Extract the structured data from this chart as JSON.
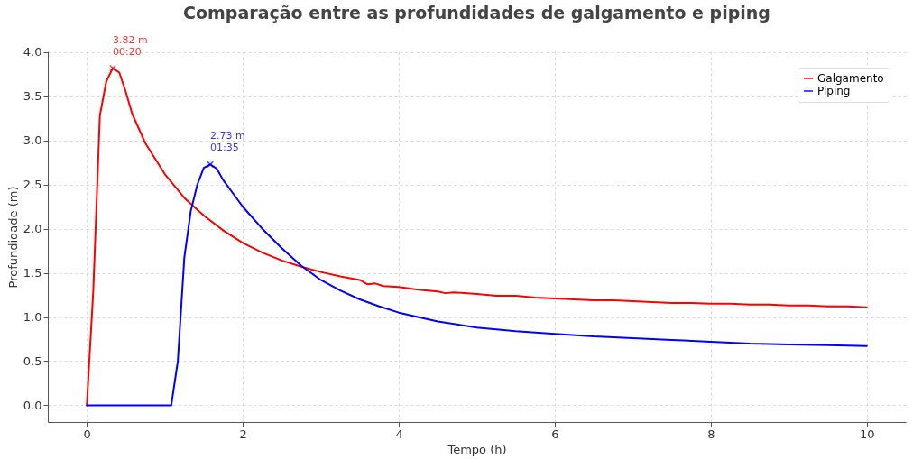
{
  "chart_data": {
    "type": "line",
    "title": "Comparação entre as profundidades de galgamento e piping",
    "xlabel": "Tempo (h)",
    "ylabel": "Profundidade (m)",
    "xlim": [
      -0.5,
      10.5
    ],
    "ylim": [
      -0.19,
      4.01
    ],
    "xticks": [
      0,
      2,
      4,
      6,
      8,
      10
    ],
    "yticks": [
      {
        "value": 0,
        "label": "0.0"
      },
      {
        "value": 0.5,
        "label": "0.5"
      },
      {
        "value": 1,
        "label": "1.0"
      },
      {
        "value": 1.5,
        "label": "1.5"
      },
      {
        "value": 2,
        "label": "2.0"
      },
      {
        "value": 2.5,
        "label": "2.5"
      },
      {
        "value": 3,
        "label": "3.0"
      },
      {
        "value": 3.5,
        "label": "3.5"
      },
      {
        "value": 4,
        "label": "4.0"
      }
    ],
    "grid": true,
    "legend": "top right",
    "line_style": "solid",
    "series": [
      {
        "name": "Galgamento",
        "color": "#ff0000",
        "x": [
          0,
          0.083,
          0.167,
          0.25,
          0.333,
          0.417,
          0.5,
          0.583,
          0.75,
          1,
          1.25,
          1.5,
          1.75,
          2,
          2.25,
          2.5,
          2.75,
          3,
          3.25,
          3.5,
          3.6,
          3.7,
          3.8,
          4,
          4.25,
          4.5,
          4.6,
          4.7,
          5,
          5.25,
          5.5,
          5.75,
          6,
          6.25,
          6.5,
          6.75,
          7,
          7.25,
          7.5,
          7.75,
          8,
          8.25,
          8.5,
          8.75,
          9,
          9.25,
          9.5,
          9.75,
          10
        ],
        "values": [
          0,
          1.3,
          3.28,
          3.67,
          3.82,
          3.77,
          3.55,
          3.3,
          2.97,
          2.62,
          2.35,
          2.15,
          1.98,
          1.84,
          1.73,
          1.64,
          1.57,
          1.51,
          1.46,
          1.42,
          1.37,
          1.38,
          1.35,
          1.34,
          1.31,
          1.29,
          1.27,
          1.28,
          1.26,
          1.24,
          1.24,
          1.22,
          1.21,
          1.2,
          1.19,
          1.19,
          1.18,
          1.17,
          1.16,
          1.16,
          1.15,
          1.15,
          1.14,
          1.14,
          1.13,
          1.13,
          1.12,
          1.12,
          1.11
        ]
      },
      {
        "name": "Piping",
        "color": "#0000ff",
        "x": [
          0,
          1.083,
          1.167,
          1.25,
          1.333,
          1.417,
          1.5,
          1.583,
          1.667,
          1.75,
          2,
          2.25,
          2.5,
          2.75,
          3,
          3.25,
          3.5,
          3.75,
          4,
          4.5,
          5,
          5.5,
          6,
          6.5,
          7,
          7.5,
          8,
          8.5,
          9,
          9.5,
          10
        ],
        "values": [
          0,
          0,
          0.5,
          1.67,
          2.2,
          2.5,
          2.69,
          2.73,
          2.68,
          2.55,
          2.25,
          2,
          1.78,
          1.58,
          1.42,
          1.3,
          1.2,
          1.12,
          1.05,
          0.95,
          0.88,
          0.84,
          0.81,
          0.78,
          0.76,
          0.74,
          0.72,
          0.7,
          0.69,
          0.68,
          0.67
        ]
      }
    ],
    "annotations": [
      {
        "text": "3.82 m\n00:20",
        "x": 0.333,
        "y": 3.82
      },
      {
        "text": "2.73 m\n01:35",
        "x": 1.583,
        "y": 2.73
      }
    ]
  }
}
